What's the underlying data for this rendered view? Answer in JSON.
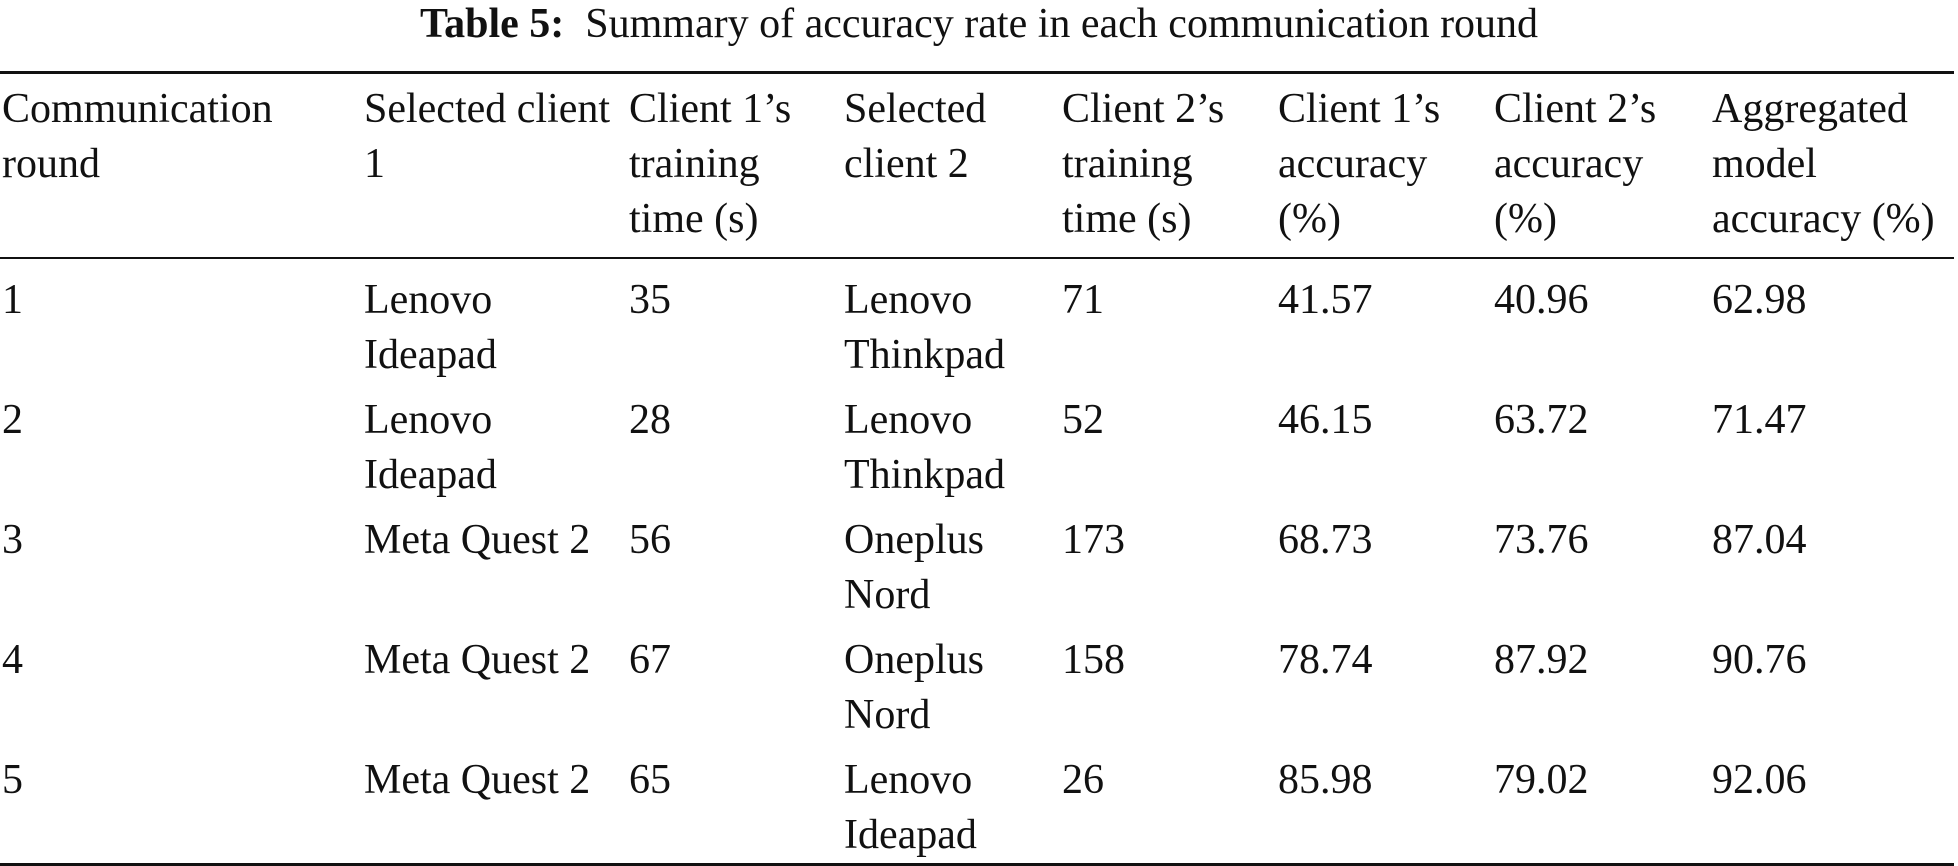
{
  "caption": {
    "label": "Table 5:",
    "text": "Summary of accuracy rate in each communication round"
  },
  "table": {
    "headers": [
      "Communication round",
      "Selected client 1",
      "Client 1’s training time (s)",
      "Selected client 2",
      "Client 2’s training time (s)",
      "Client 1’s accuracy (%)",
      "Client 2’s accuracy (%)",
      "Aggregated model accuracy (%)"
    ],
    "rows": [
      [
        "1",
        "Lenovo Ideapad",
        "35",
        "Lenovo Thinkpad",
        "71",
        "41.57",
        "40.96",
        "62.98"
      ],
      [
        "2",
        "Lenovo Ideapad",
        "28",
        "Lenovo Thinkpad",
        "52",
        "46.15",
        "63.72",
        "71.47"
      ],
      [
        "3",
        "Meta Quest 2",
        "56",
        "Oneplus Nord",
        "173",
        "68.73",
        "73.76",
        "87.04"
      ],
      [
        "4",
        "Meta Quest 2",
        "67",
        "Oneplus Nord",
        "158",
        "78.74",
        "87.92",
        "90.76"
      ],
      [
        "5",
        "Meta Quest 2",
        "65",
        "Lenovo Ideapad",
        "26",
        "85.98",
        "79.02",
        "92.06"
      ]
    ]
  }
}
